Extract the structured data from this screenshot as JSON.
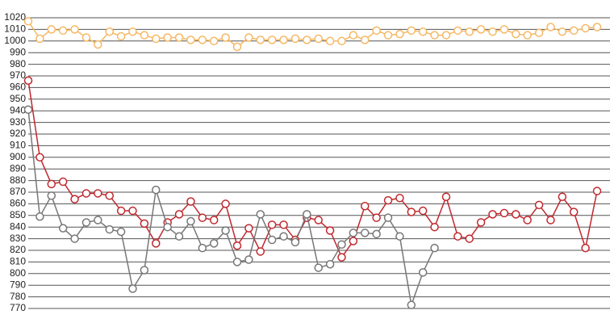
{
  "chart_data": {
    "type": "line",
    "categories": [
      null,
      null,
      null,
      null,
      null,
      null,
      null,
      null,
      null,
      null,
      null,
      null,
      null,
      null,
      null,
      null,
      null,
      null,
      null,
      null,
      null,
      null,
      null,
      null,
      null,
      null,
      null,
      null,
      null,
      null,
      null,
      null,
      null,
      null,
      null,
      null,
      null,
      null,
      null,
      null,
      null,
      null,
      null,
      null,
      null,
      null,
      null,
      null,
      null,
      null
    ],
    "series": [
      {
        "color": "#f5b865",
        "values": [
          1017,
          1002,
          1010,
          1009,
          1010,
          1003,
          997,
          1008,
          1004,
          1008,
          1005,
          1002,
          1003,
          1003,
          1001,
          1001,
          1000,
          1003,
          995,
          1003,
          1001,
          1001,
          1001,
          1002,
          1001,
          1002,
          1000,
          1000,
          1005,
          1001,
          1009,
          1005,
          1006,
          1009,
          1008,
          1005,
          1005,
          1009,
          1008,
          1010,
          1008,
          1010,
          1006,
          1005,
          1007,
          1012,
          1008,
          1009,
          1011,
          1012
        ]
      },
      {
        "color": "#c0282e",
        "values": [
          966,
          900,
          877,
          879,
          864,
          869,
          869,
          867,
          854,
          854,
          843,
          826,
          844,
          851,
          862,
          848,
          846,
          860,
          824,
          839,
          819,
          842,
          842,
          829,
          848,
          846,
          837,
          814,
          828,
          858,
          848,
          863,
          865,
          853,
          854,
          840,
          866,
          832,
          830,
          844,
          851,
          852,
          851,
          846,
          859,
          846,
          866,
          853,
          822,
          871
        ]
      },
      {
        "color": "#777777",
        "values": [
          941,
          849,
          867,
          839,
          830,
          844,
          846,
          838,
          836,
          787,
          803,
          872,
          840,
          832,
          845,
          822,
          826,
          837,
          810,
          812,
          851,
          829,
          832,
          827,
          851,
          805,
          808,
          825,
          835,
          835,
          834,
          848,
          832,
          773,
          801,
          822,
          null,
          null,
          null,
          null,
          null,
          null,
          null,
          null,
          null,
          null,
          null,
          null,
          null,
          null
        ]
      }
    ],
    "ylim": [
      770,
      1020
    ],
    "yticks": [
      770,
      780,
      790,
      800,
      810,
      820,
      830,
      840,
      850,
      860,
      870,
      880,
      890,
      900,
      910,
      920,
      930,
      940,
      950,
      960,
      970,
      980,
      990,
      1000,
      1010,
      1020
    ],
    "grid": true
  }
}
